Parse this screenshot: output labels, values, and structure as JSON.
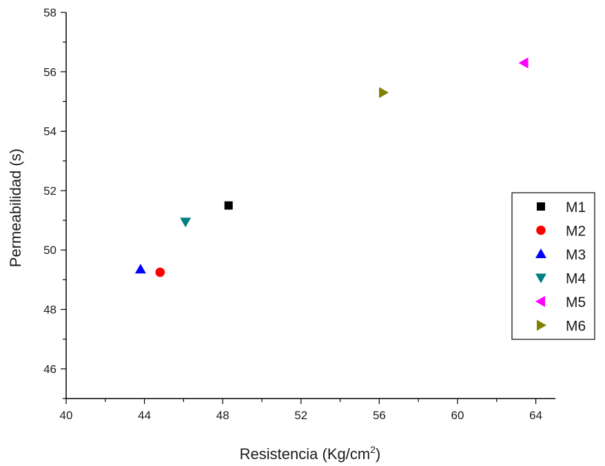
{
  "chart_data": {
    "type": "scatter",
    "title": "",
    "xlabel": "Resistencia (Kg/cm",
    "xlabel_superscript": "2",
    "xlabel_suffix": ")",
    "ylabel": "Permeabilidad (s)",
    "xlim": [
      40,
      65
    ],
    "ylim": [
      45,
      58
    ],
    "x_ticks": [
      40,
      44,
      48,
      52,
      56,
      60,
      64
    ],
    "y_ticks": [
      46,
      48,
      50,
      52,
      54,
      56,
      58
    ],
    "grid": false,
    "legend_position": "right",
    "series": [
      {
        "name": "M1",
        "x": 48.3,
        "y": 51.5,
        "marker": "square",
        "color": "#000000"
      },
      {
        "name": "M2",
        "x": 44.8,
        "y": 49.25,
        "marker": "circle",
        "color": "#ff0000"
      },
      {
        "name": "M3",
        "x": 43.8,
        "y": 49.35,
        "marker": "triangle-up",
        "color": "#0000ff"
      },
      {
        "name": "M4",
        "x": 46.1,
        "y": 50.95,
        "marker": "triangle-down",
        "color": "#008080"
      },
      {
        "name": "M5",
        "x": 63.4,
        "y": 56.3,
        "marker": "triangle-left",
        "color": "#ff00ff"
      },
      {
        "name": "M6",
        "x": 56.2,
        "y": 55.3,
        "marker": "triangle-right",
        "color": "#808000"
      }
    ]
  }
}
